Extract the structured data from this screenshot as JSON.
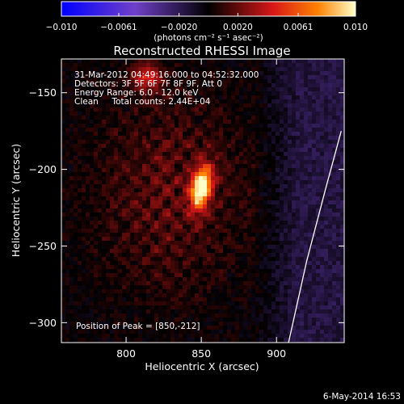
{
  "chart_data": {
    "type": "heatmap",
    "title": "Reconstructed RHESSI Image",
    "xlabel": "Heliocentric X (arcsec)",
    "ylabel": "Heliocentric Y (arcsec)",
    "xlim": [
      757,
      945
    ],
    "ylim": [
      -313,
      -128
    ],
    "x_ticks": [
      800,
      850,
      900
    ],
    "y_ticks": [
      -150,
      -200,
      -250,
      -300
    ],
    "colorbar": {
      "min": -0.01,
      "max": 0.01,
      "ticks": [
        -0.01,
        -0.0061,
        -0.002,
        0.002,
        0.0061,
        0.01
      ],
      "tick_labels": [
        "−0.010",
        "−0.0061",
        "−0.0020",
        "0.0020",
        "0.0061",
        "0.010"
      ],
      "label": "(photons cm⁻² s⁻¹ asec⁻²)"
    },
    "info_lines": [
      "31-Mar-2012 04:49:16.000 to 04:52:32.000",
      "Detectors: 3F 5F 6F 7F 8F 9F, Att 0",
      "Energy Range: 6.0 - 12.0 keV",
      "Clean     Total counts: 2.44E+04"
    ],
    "peak_label": "Position of Peak = [850,-212]",
    "peak": {
      "x": 850,
      "y": -212,
      "value": 0.01
    },
    "limb_points": [
      [
        943,
        -175
      ],
      [
        932,
        -215
      ],
      [
        920,
        -260
      ],
      [
        908,
        -313
      ]
    ],
    "date_stamp": "6-May-2014 16:53"
  }
}
